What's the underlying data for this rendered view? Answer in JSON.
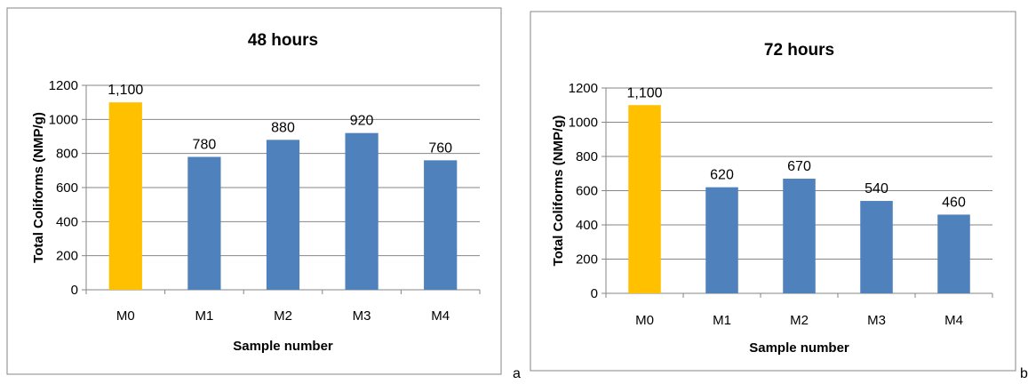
{
  "panel_letters": [
    "a",
    "b"
  ],
  "colors": {
    "control": "#FFC000",
    "sample": "#4F81BD",
    "grid": "#868686",
    "axis": "#868686",
    "border": "#868686"
  },
  "chart_data": [
    {
      "type": "bar",
      "title": "48 hours",
      "xlabel": "Sample number",
      "ylabel": "Total Coliforms (NMP/g)",
      "categories": [
        "M0",
        "M1",
        "M2",
        "M3",
        "M4"
      ],
      "values": [
        1100,
        780,
        880,
        920,
        760
      ],
      "data_labels": [
        "1,100",
        "780",
        "880",
        "920",
        "760"
      ],
      "ylim": [
        0,
        1200
      ],
      "yticks": [
        0,
        200,
        400,
        600,
        800,
        1000,
        1200
      ],
      "grid": true,
      "legend": "none"
    },
    {
      "type": "bar",
      "title": "72 hours",
      "xlabel": "Sample number",
      "ylabel": "Total Coliforms (NMP/g)",
      "categories": [
        "M0",
        "M1",
        "M2",
        "M3",
        "M4"
      ],
      "values": [
        1100,
        620,
        670,
        540,
        460
      ],
      "data_labels": [
        "1,100",
        "620",
        "670",
        "540",
        "460"
      ],
      "ylim": [
        0,
        1200
      ],
      "yticks": [
        0,
        200,
        400,
        600,
        800,
        1000,
        1200
      ],
      "grid": true,
      "legend": "none"
    }
  ]
}
